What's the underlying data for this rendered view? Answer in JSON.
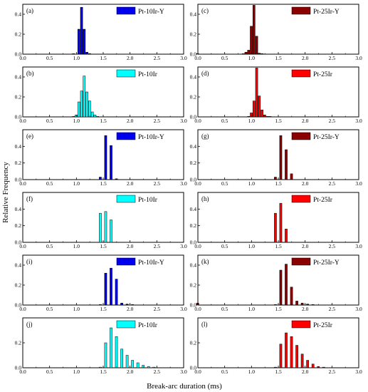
{
  "figure": {
    "ylabel": "Relative Frequency",
    "xlabel": "Break-arc duration (ms)"
  },
  "colors": {
    "blue": "#0000ee",
    "cyan": "#00ffff",
    "darkred": "#8b0000",
    "red": "#ff0000"
  },
  "chart_data": [
    {
      "type": "bar",
      "panel": "(a)",
      "legend": "Pt-10Ir-Y",
      "color_key": "blue",
      "xlim": [
        0.0,
        3.0
      ],
      "ylim": [
        0.0,
        0.5
      ],
      "xticks": [
        "0.0",
        "0.5",
        "1.0",
        "1.5",
        "2.0",
        "2.5",
        "3.0"
      ],
      "yticks": [
        "0.0",
        "0.2",
        "0.4"
      ],
      "bin_width": 0.05,
      "x": [
        0.95,
        1.05,
        1.1,
        1.15,
        1.2,
        1.25
      ],
      "values": [
        0.005,
        0.25,
        0.47,
        0.25,
        0.02,
        0.005
      ]
    },
    {
      "type": "bar",
      "panel": "(c)",
      "legend": "Pt-25Ir-Y",
      "color_key": "darkred",
      "xlim": [
        0.0,
        3.0
      ],
      "ylim": [
        0.0,
        0.5
      ],
      "xticks": [
        "0.0",
        "0.5",
        "1.0",
        "1.5",
        "2.0",
        "2.5",
        "3.0"
      ],
      "yticks": [
        "0.0",
        "0.2",
        "0.4"
      ],
      "bin_width": 0.05,
      "x": [
        0.0,
        0.85,
        0.9,
        0.95,
        1.0,
        1.05,
        1.1,
        1.15,
        1.2
      ],
      "values": [
        0.005,
        0.005,
        0.02,
        0.04,
        0.28,
        0.49,
        0.18,
        0.01,
        0.005
      ]
    },
    {
      "type": "bar",
      "panel": "(b)",
      "legend": "Pt-10Ir",
      "color_key": "cyan",
      "xlim": [
        0.0,
        3.0
      ],
      "ylim": [
        0.0,
        0.5
      ],
      "xticks": [
        "0.0",
        "0.5",
        "1.0",
        "1.5",
        "2.0",
        "2.5",
        "3.0"
      ],
      "yticks": [
        "0.0",
        "0.2",
        "0.4"
      ],
      "bin_width": 0.05,
      "x": [
        0.95,
        1.0,
        1.05,
        1.1,
        1.15,
        1.2,
        1.25,
        1.3,
        1.35,
        1.4
      ],
      "values": [
        0.005,
        0.02,
        0.15,
        0.26,
        0.41,
        0.25,
        0.16,
        0.05,
        0.02,
        0.005
      ]
    },
    {
      "type": "bar",
      "panel": "(d)",
      "legend": "Pt-25Ir",
      "color_key": "red",
      "xlim": [
        0.0,
        3.0
      ],
      "ylim": [
        0.0,
        0.5
      ],
      "xticks": [
        "0.0",
        "0.5",
        "1.0",
        "1.5",
        "2.0",
        "2.5",
        "3.0"
      ],
      "yticks": [
        "0.0",
        "0.2",
        "0.4"
      ],
      "bin_width": 0.05,
      "x": [
        0.95,
        1.0,
        1.05,
        1.1,
        1.15,
        1.2,
        1.25,
        1.3,
        1.35
      ],
      "values": [
        0.005,
        0.04,
        0.16,
        0.49,
        0.21,
        0.07,
        0.02,
        0.005,
        0.005
      ]
    },
    {
      "type": "bar",
      "panel": "(e)",
      "legend": "Pt-10Ir-Y",
      "color_key": "blue",
      "xlim": [
        0.0,
        3.0
      ],
      "ylim": [
        0.0,
        0.6
      ],
      "xticks": [
        "0.0",
        "0.5",
        "1.0",
        "1.5",
        "2.0",
        "2.5",
        "3.0"
      ],
      "yticks": [
        "0.0",
        "0.2",
        "0.4"
      ],
      "bin_width": 0.05,
      "x": [
        1.45,
        1.55,
        1.65,
        1.75
      ],
      "values": [
        0.03,
        0.53,
        0.41,
        0.01
      ]
    },
    {
      "type": "bar",
      "panel": "(g)",
      "legend": "Pt-25Ir-Y",
      "color_key": "darkred",
      "xlim": [
        0.0,
        3.0
      ],
      "ylim": [
        0.0,
        0.6
      ],
      "xticks": [
        "0.0",
        "0.5",
        "1.0",
        "1.5",
        "2.0",
        "2.5",
        "3.0"
      ],
      "yticks": [
        "0.0",
        "0.2",
        "0.4"
      ],
      "bin_width": 0.05,
      "x": [
        1.45,
        1.55,
        1.65,
        1.75
      ],
      "values": [
        0.03,
        0.53,
        0.36,
        0.07
      ]
    },
    {
      "type": "bar",
      "panel": "(f)",
      "legend": "Pt-10Ir",
      "color_key": "cyan",
      "xlim": [
        0.0,
        3.0
      ],
      "ylim": [
        0.0,
        0.6
      ],
      "xticks": [
        "0.0",
        "0.5",
        "1.0",
        "1.5",
        "2.0",
        "2.5",
        "3.0"
      ],
      "yticks": [
        "0.0",
        "0.2",
        "0.4"
      ],
      "bin_width": 0.05,
      "x": [
        1.45,
        1.55,
        1.65
      ],
      "values": [
        0.35,
        0.37,
        0.27
      ]
    },
    {
      "type": "bar",
      "panel": "(h)",
      "legend": "Pt-25Ir",
      "color_key": "red",
      "xlim": [
        0.0,
        3.0
      ],
      "ylim": [
        0.0,
        0.6
      ],
      "xticks": [
        "0.0",
        "0.5",
        "1.0",
        "1.5",
        "2.0",
        "2.5",
        "3.0"
      ],
      "yticks": [
        "0.0",
        "0.2",
        "0.4"
      ],
      "bin_width": 0.05,
      "x": [
        1.45,
        1.55,
        1.65
      ],
      "values": [
        0.35,
        0.47,
        0.16
      ]
    },
    {
      "type": "bar",
      "panel": "(i)",
      "legend": "Pt-10Ir-Y",
      "color_key": "blue",
      "xlim": [
        0.0,
        3.0
      ],
      "ylim": [
        0.0,
        0.5
      ],
      "xticks": [
        "0.0",
        "0.5",
        "1.0",
        "1.5",
        "2.0",
        "2.5",
        "3.0"
      ],
      "yticks": [
        "0.0",
        "0.2",
        "0.4"
      ],
      "bin_width": 0.05,
      "x": [
        1.45,
        1.55,
        1.65,
        1.75,
        1.85,
        1.95,
        2.05
      ],
      "values": [
        0.005,
        0.32,
        0.37,
        0.26,
        0.02,
        0.01,
        0.005
      ]
    },
    {
      "type": "bar",
      "panel": "(k)",
      "legend": "Pt-25Ir-Y",
      "color_key": "darkred",
      "xlim": [
        0.0,
        3.0
      ],
      "ylim": [
        0.0,
        0.5
      ],
      "xticks": [
        "0.0",
        "0.5",
        "1.0",
        "1.5",
        "2.0",
        "2.5",
        "3.0"
      ],
      "yticks": [
        "0.0",
        "0.2",
        "0.4"
      ],
      "bin_width": 0.05,
      "x": [
        0.0,
        1.45,
        1.55,
        1.65,
        1.75,
        1.85,
        1.95,
        2.05,
        2.15
      ],
      "values": [
        0.02,
        0.005,
        0.35,
        0.41,
        0.18,
        0.04,
        0.02,
        0.01,
        0.005
      ]
    },
    {
      "type": "bar",
      "panel": "(j)",
      "legend": "Pt-10Ir",
      "color_key": "cyan",
      "xlim": [
        0.0,
        3.0
      ],
      "ylim": [
        0.0,
        0.4
      ],
      "xticks": [
        "0.0",
        "0.5",
        "1.0",
        "1.5",
        "2.0",
        "2.5",
        "3.0"
      ],
      "yticks": [
        "0.0",
        "0.2"
      ],
      "bin_width": 0.05,
      "x": [
        1.45,
        1.55,
        1.65,
        1.75,
        1.85,
        1.95,
        2.05,
        2.15,
        2.25,
        2.35,
        2.45
      ],
      "values": [
        0.005,
        0.2,
        0.32,
        0.25,
        0.15,
        0.1,
        0.06,
        0.04,
        0.02,
        0.01,
        0.005
      ]
    },
    {
      "type": "bar",
      "panel": "(l)",
      "legend": "Pt-25Ir",
      "color_key": "red",
      "xlim": [
        0.0,
        3.0
      ],
      "ylim": [
        0.0,
        0.4
      ],
      "xticks": [
        "0.0",
        "0.5",
        "1.0",
        "1.5",
        "2.0",
        "2.5",
        "3.0"
      ],
      "yticks": [
        "0.0",
        "0.2"
      ],
      "bin_width": 0.05,
      "x": [
        1.45,
        1.55,
        1.65,
        1.75,
        1.85,
        1.95,
        2.05,
        2.15,
        2.25,
        2.35
      ],
      "values": [
        0.005,
        0.19,
        0.28,
        0.25,
        0.18,
        0.11,
        0.06,
        0.03,
        0.01,
        0.005
      ]
    }
  ]
}
